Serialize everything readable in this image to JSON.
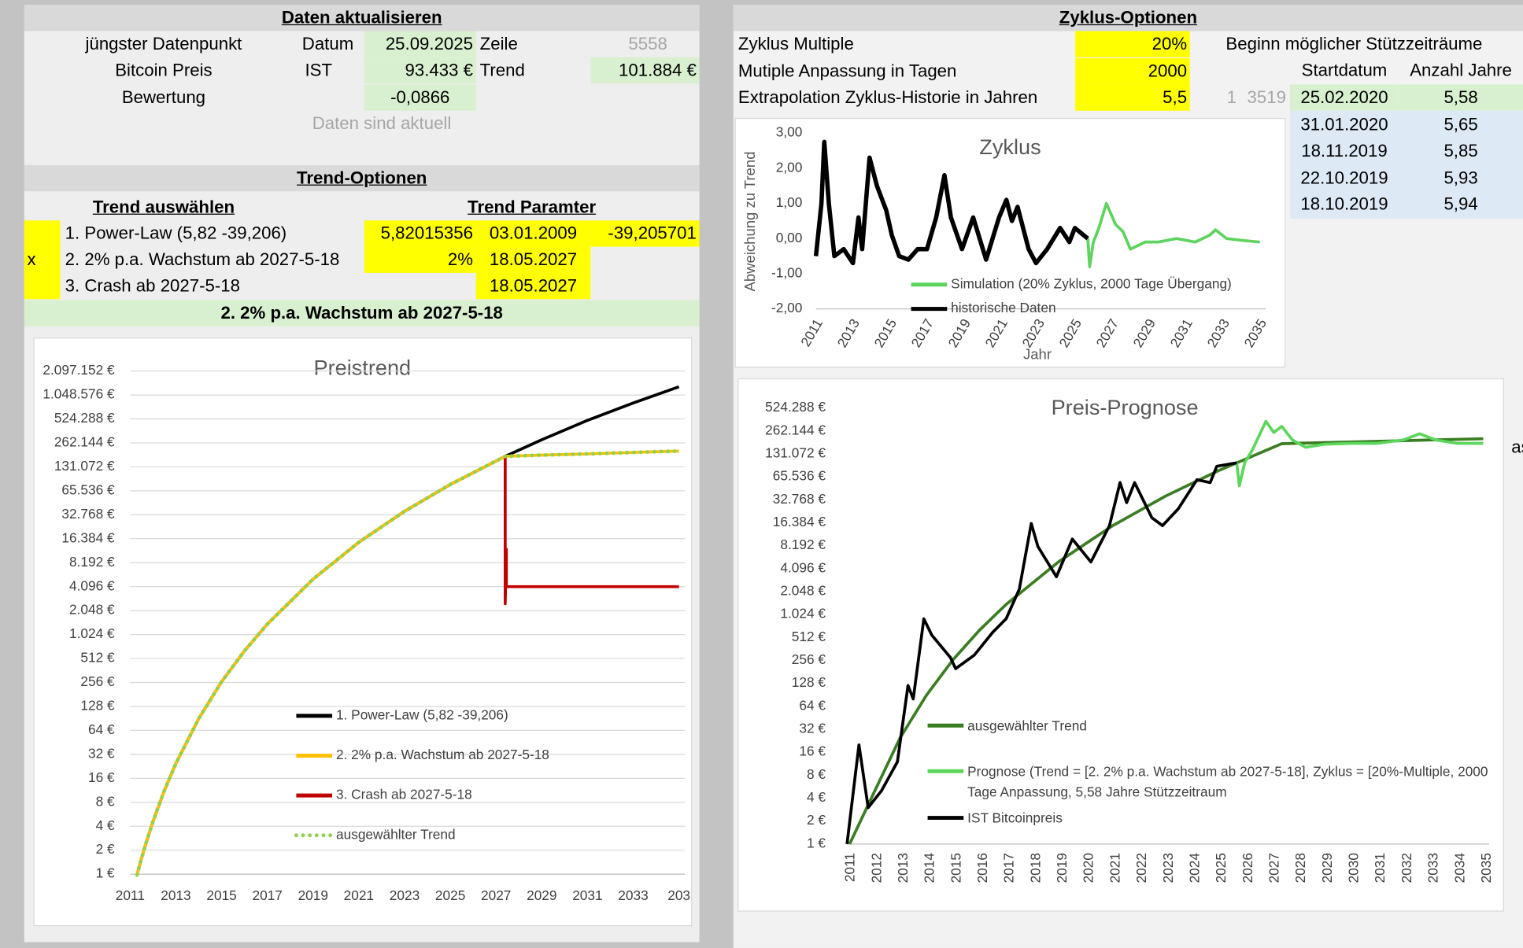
{
  "daten": {
    "header": "Daten aktualisieren",
    "rows": [
      [
        "jüngster Datenpunkt",
        "Datum",
        "25.09.2025",
        "Zeile",
        "5558"
      ],
      [
        "Bitcoin Preis",
        "IST",
        "93.433 €",
        "Trend",
        "101.884 €"
      ],
      [
        "Bewertung",
        "-0,0866"
      ]
    ],
    "status": "Daten sind aktuell"
  },
  "trend_options": {
    "header": "Trend-Optionen",
    "col_headers": [
      "Trend auswählen",
      "Trend Paramter"
    ],
    "rows": [
      {
        "name": "1. Power-Law (5,82 -39,206)",
        "params": [
          "5,82015356",
          "03.01.2009",
          "-39,205701"
        ]
      },
      {
        "marker": "x",
        "name": "2. 2% p.a. Wachstum ab 2027-5-18",
        "params": [
          "2%",
          "18.05.2027"
        ]
      },
      {
        "name": "3. Crash ab 2027-5-18",
        "params": [
          "18.05.2027"
        ]
      }
    ],
    "selected": "2. 2% p.a. Wachstum ab 2027-5-18"
  },
  "zyklus": {
    "header": "Zyklus-Optionen",
    "options": [
      {
        "label": "Zyklus Multiple",
        "value": "20%"
      },
      {
        "label": "Mutiple Anpassung in Tagen",
        "value": "2000"
      },
      {
        "label": "Extrapolation Zyklus-Historie in Jahren",
        "value": "5,5"
      }
    ],
    "extra": [
      "1",
      "3519"
    ],
    "support": {
      "title": "Beginn möglicher Stützzeiträume",
      "columns": [
        "Startdatum",
        "Anzahl Jahre"
      ],
      "rows": [
        [
          "25.02.2020",
          "5,58"
        ],
        [
          "31.01.2020",
          "5,65"
        ],
        [
          "18.11.2019",
          "5,85"
        ],
        [
          "22.10.2019",
          "5,93"
        ],
        [
          "18.10.2019",
          "5,94"
        ]
      ]
    },
    "overflow": "as"
  },
  "chart_data": [
    {
      "type": "line",
      "title": "Preistrend",
      "log_y": true,
      "grid": true,
      "legend": "lower center",
      "x": [
        2011.3,
        2011.5,
        2011.7,
        2012,
        2012.5,
        2013,
        2014,
        2015,
        2016,
        2017,
        2019,
        2021,
        2023,
        2025,
        2027.4,
        2029,
        2031,
        2033,
        2035
      ],
      "xlim": [
        2011,
        2035
      ],
      "xticks": [
        2011,
        2013,
        2015,
        2017,
        2019,
        2021,
        2023,
        2025,
        2027,
        2029,
        2031,
        2033,
        {
          "value": 2035,
          "label": "203"
        }
      ],
      "ylim": [
        1,
        2097152
      ],
      "yticks": [
        {
          "value": 1,
          "label": "1 €"
        },
        {
          "value": 2,
          "label": "2 €"
        },
        {
          "value": 4,
          "label": "4 €"
        },
        {
          "value": 8,
          "label": "8 €"
        },
        {
          "value": 16,
          "label": "16 €"
        },
        {
          "value": 32,
          "label": "32 €"
        },
        {
          "value": 64,
          "label": "64 €"
        },
        {
          "value": 128,
          "label": "128 €"
        },
        {
          "value": 256,
          "label": "256 €"
        },
        {
          "value": 512,
          "label": "512 €"
        },
        {
          "value": 1024,
          "label": "1.024 €"
        },
        {
          "value": 2048,
          "label": "2.048 €"
        },
        {
          "value": 4096,
          "label": "4.096 €"
        },
        {
          "value": 8192,
          "label": "8.192 €"
        },
        {
          "value": 16384,
          "label": "16.384 €"
        },
        {
          "value": 32768,
          "label": "32.768 €"
        },
        {
          "value": 65536,
          "label": "65.536 €"
        },
        {
          "value": 131072,
          "label": "131.072 €"
        },
        {
          "value": 262144,
          "label": "262.144 €"
        },
        {
          "value": 524288,
          "label": "524.288 €"
        },
        {
          "value": 1048576,
          "label": "1.048.576 €"
        },
        {
          "value": 2097152,
          "label": "2.097.152 €"
        }
      ],
      "series": [
        {
          "name": "1. Power-Law (5,82 -39,206)",
          "color": "#000000",
          "values": [
            0.98,
            1.6,
            2.5,
            4.6,
            11.3,
            24.6,
            90,
            262,
            640,
            1390,
            5080,
            14800,
            36300,
            78700,
            178000,
            288000,
            503000,
            833000,
            1330000
          ]
        },
        {
          "name": "2. 2% p.a. Wachstum ab 2027-5-18",
          "color": "#ffc000",
          "values": [
            0.98,
            1.6,
            2.5,
            4.6,
            11.3,
            24.6,
            90,
            262,
            640,
            1390,
            5080,
            14800,
            36300,
            78700,
            178000,
            184000,
            191000,
            199000,
            207000
          ]
        },
        {
          "name": "3. Crash ab 2027-5-18",
          "color": "#c00000",
          "x": [
            2027.4,
            2027.4,
            2027.45,
            2027.45,
            2035
          ],
          "values": [
            178000,
            2500,
            12000,
            4096,
            4096
          ]
        },
        {
          "name": "ausgewählter Trend",
          "color": "#92d050",
          "style": "dotted",
          "values": [
            0.98,
            1.6,
            2.5,
            4.6,
            11.3,
            24.6,
            90,
            262,
            640,
            1390,
            5080,
            14800,
            36300,
            78700,
            178000,
            184000,
            191000,
            199000,
            207000
          ]
        }
      ]
    },
    {
      "type": "line",
      "title": "Zyklus",
      "xlabel": "Jahr",
      "ylabel": "Abweichung zu Trend",
      "grid": false,
      "legend": "bottom",
      "xlim": [
        2011,
        2035
      ],
      "xticks": [
        2011,
        2013,
        2015,
        2017,
        2019,
        2021,
        2023,
        2025,
        2027,
        2029,
        2031,
        2033,
        2035
      ],
      "ylim": [
        -2,
        3
      ],
      "yticks": [
        {
          "value": -2,
          "label": "-2,00"
        },
        {
          "value": -1,
          "label": "-1,00"
        },
        {
          "value": 0,
          "label": "0,00"
        },
        {
          "value": 1,
          "label": "1,00"
        },
        {
          "value": 2,
          "label": "2,00"
        },
        {
          "value": 3,
          "label": "3,00"
        }
      ],
      "series": [
        {
          "name": "Simulation (20% Zyklus, 2000 Tage Übergang)",
          "color": "#5ed35e",
          "x": [
            2025.7,
            2025.8,
            2026.0,
            2026.3,
            2026.7,
            2027.2,
            2027.6,
            2028.0,
            2028.8,
            2029.5,
            2030.5,
            2031.5,
            2032.3,
            2032.6,
            2033.2,
            2034,
            2035
          ],
          "values": [
            0.0,
            -0.8,
            -0.1,
            0.3,
            1.0,
            0.4,
            0.2,
            -0.3,
            -0.1,
            -0.1,
            0.0,
            -0.1,
            0.1,
            0.25,
            0.0,
            -0.05,
            -0.1
          ]
        },
        {
          "name": "historische Daten",
          "color": "#000000",
          "x": [
            2011.0,
            2011.3,
            2011.45,
            2011.7,
            2012,
            2012.5,
            2013,
            2013.3,
            2013.5,
            2013.9,
            2014.3,
            2014.8,
            2015.1,
            2015.5,
            2016,
            2016.5,
            2017,
            2017.5,
            2017.95,
            2018.3,
            2018.9,
            2019.5,
            2020.2,
            2020.9,
            2021.3,
            2021.6,
            2021.9,
            2022.5,
            2022.9,
            2023.5,
            2024.2,
            2024.7,
            2025.0,
            2025.7
          ],
          "values": [
            -0.5,
            1.0,
            2.75,
            1.0,
            -0.5,
            -0.3,
            -0.7,
            0.6,
            -0.3,
            2.3,
            1.5,
            0.8,
            0.1,
            -0.5,
            -0.6,
            -0.3,
            -0.3,
            0.6,
            1.8,
            0.6,
            -0.3,
            0.6,
            -0.6,
            0.6,
            1.1,
            0.5,
            0.9,
            -0.3,
            -0.7,
            -0.3,
            0.3,
            -0.1,
            0.3,
            0.0
          ]
        }
      ]
    },
    {
      "type": "line",
      "title": "Preis-Prognose",
      "log_y": true,
      "grid": false,
      "legend": "lower center",
      "xlim": [
        2011,
        2035
      ],
      "xticks": [
        2011,
        2012,
        2013,
        2014,
        2015,
        2016,
        2017,
        2018,
        2019,
        2020,
        2021,
        2022,
        2023,
        2024,
        2025,
        2026,
        2027,
        2028,
        2029,
        2030,
        2031,
        2032,
        2033,
        2034,
        2035
      ],
      "ylim": [
        1,
        524288
      ],
      "yticks": [
        {
          "value": 1,
          "label": "1 €"
        },
        {
          "value": 2,
          "label": "2 €"
        },
        {
          "value": 4,
          "label": "4 €"
        },
        {
          "value": 8,
          "label": "8 €"
        },
        {
          "value": 16,
          "label": "16 €"
        },
        {
          "value": 32,
          "label": "32 €"
        },
        {
          "value": 64,
          "label": "64 €"
        },
        {
          "value": 128,
          "label": "128 €"
        },
        {
          "value": 256,
          "label": "256 €"
        },
        {
          "value": 512,
          "label": "512 €"
        },
        {
          "value": 1024,
          "label": "1.024 €"
        },
        {
          "value": 2048,
          "label": "2.048 €"
        },
        {
          "value": 4096,
          "label": "4.096 €"
        },
        {
          "value": 8192,
          "label": "8.192 €"
        },
        {
          "value": 16384,
          "label": "16.384 €"
        },
        {
          "value": 32768,
          "label": "32.768 €"
        },
        {
          "value": 65536,
          "label": "65.536 €"
        },
        {
          "value": 131072,
          "label": "131.072 €"
        },
        {
          "value": 262144,
          "label": "262.144 €"
        },
        {
          "value": 524288,
          "label": "524.288 €"
        }
      ],
      "series": [
        {
          "name": "ausgewählter Trend",
          "color": "#3a7d22",
          "x": [
            2011.1,
            2012,
            2013,
            2014,
            2015,
            2016,
            2017,
            2019,
            2021,
            2023,
            2025,
            2027.4,
            2029,
            2031,
            2033,
            2035
          ],
          "values": [
            1,
            4.6,
            24.6,
            90,
            262,
            640,
            1390,
            5080,
            14800,
            36300,
            78700,
            178000,
            184000,
            191000,
            199000,
            207000
          ]
        },
        {
          "name": "Prognose (Trend = [2. 2% p.a. Wachstum ab 2027-5-18], Zyklus = [20%-Multiple, 2000 Tage Anpassung, 5,58 Jahre Stützzeitraum",
          "color": "#5cd65c",
          "x": [
            2025.7,
            2025.8,
            2026.0,
            2026.3,
            2026.8,
            2027.1,
            2027.4,
            2027.8,
            2028.3,
            2029,
            2030,
            2031,
            2032,
            2032.6,
            2033.2,
            2034,
            2035
          ],
          "values": [
            100000,
            50000,
            100000,
            150000,
            350000,
            250000,
            300000,
            200000,
            160000,
            175000,
            180000,
            180000,
            200000,
            240000,
            200000,
            180000,
            180000
          ]
        },
        {
          "name": "IST Bitcoinpreis",
          "color": "#000000",
          "x": [
            2011.0,
            2011.45,
            2011.8,
            2012.3,
            2012.9,
            2013.3,
            2013.5,
            2013.9,
            2014.2,
            2014.9,
            2015.1,
            2015.8,
            2016.5,
            2017.0,
            2017.5,
            2017.95,
            2018.2,
            2018.9,
            2019.5,
            2020.2,
            2020.9,
            2021.3,
            2021.55,
            2021.85,
            2022.5,
            2022.9,
            2023.5,
            2024.2,
            2024.7,
            2024.95,
            2025.7
          ],
          "values": [
            1,
            20,
            3,
            5,
            12,
            120,
            80,
            900,
            550,
            280,
            200,
            300,
            600,
            900,
            2200,
            16000,
            8000,
            3200,
            10000,
            5000,
            15000,
            55000,
            30000,
            55000,
            19000,
            15000,
            25000,
            60000,
            55000,
            90000,
            100000
          ]
        }
      ]
    }
  ]
}
